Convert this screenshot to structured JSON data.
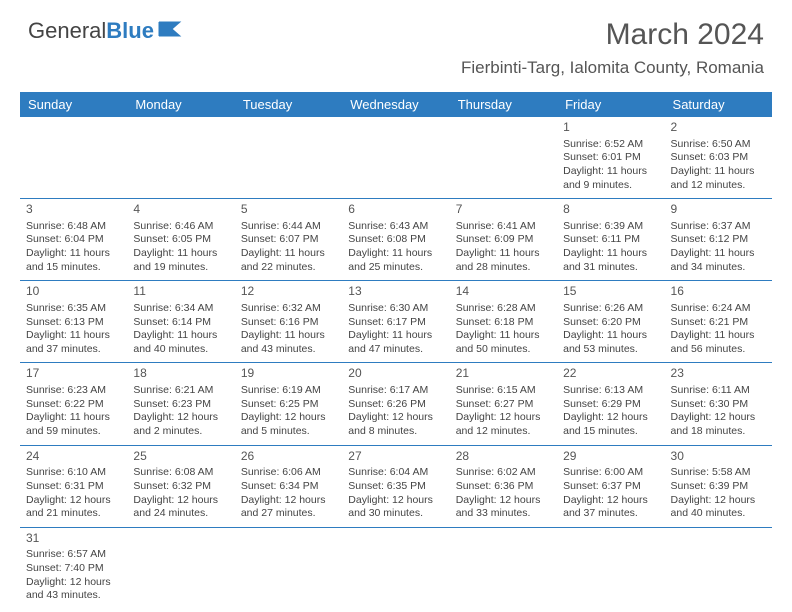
{
  "logo": {
    "general": "General",
    "blue": "Blue"
  },
  "header": {
    "title": "March 2024",
    "location": "Fierbinti-Targ, Ialomita County, Romania"
  },
  "colors": {
    "header_bg": "#2e7cc0",
    "header_text": "#ffffff",
    "border": "#2e7cc0",
    "text": "#444444"
  },
  "day_headers": [
    "Sunday",
    "Monday",
    "Tuesday",
    "Wednesday",
    "Thursday",
    "Friday",
    "Saturday"
  ],
  "weeks": [
    [
      null,
      null,
      null,
      null,
      null,
      {
        "n": "1",
        "sr": "Sunrise: 6:52 AM",
        "ss": "Sunset: 6:01 PM",
        "d1": "Daylight: 11 hours",
        "d2": "and 9 minutes."
      },
      {
        "n": "2",
        "sr": "Sunrise: 6:50 AM",
        "ss": "Sunset: 6:03 PM",
        "d1": "Daylight: 11 hours",
        "d2": "and 12 minutes."
      }
    ],
    [
      {
        "n": "3",
        "sr": "Sunrise: 6:48 AM",
        "ss": "Sunset: 6:04 PM",
        "d1": "Daylight: 11 hours",
        "d2": "and 15 minutes."
      },
      {
        "n": "4",
        "sr": "Sunrise: 6:46 AM",
        "ss": "Sunset: 6:05 PM",
        "d1": "Daylight: 11 hours",
        "d2": "and 19 minutes."
      },
      {
        "n": "5",
        "sr": "Sunrise: 6:44 AM",
        "ss": "Sunset: 6:07 PM",
        "d1": "Daylight: 11 hours",
        "d2": "and 22 minutes."
      },
      {
        "n": "6",
        "sr": "Sunrise: 6:43 AM",
        "ss": "Sunset: 6:08 PM",
        "d1": "Daylight: 11 hours",
        "d2": "and 25 minutes."
      },
      {
        "n": "7",
        "sr": "Sunrise: 6:41 AM",
        "ss": "Sunset: 6:09 PM",
        "d1": "Daylight: 11 hours",
        "d2": "and 28 minutes."
      },
      {
        "n": "8",
        "sr": "Sunrise: 6:39 AM",
        "ss": "Sunset: 6:11 PM",
        "d1": "Daylight: 11 hours",
        "d2": "and 31 minutes."
      },
      {
        "n": "9",
        "sr": "Sunrise: 6:37 AM",
        "ss": "Sunset: 6:12 PM",
        "d1": "Daylight: 11 hours",
        "d2": "and 34 minutes."
      }
    ],
    [
      {
        "n": "10",
        "sr": "Sunrise: 6:35 AM",
        "ss": "Sunset: 6:13 PM",
        "d1": "Daylight: 11 hours",
        "d2": "and 37 minutes."
      },
      {
        "n": "11",
        "sr": "Sunrise: 6:34 AM",
        "ss": "Sunset: 6:14 PM",
        "d1": "Daylight: 11 hours",
        "d2": "and 40 minutes."
      },
      {
        "n": "12",
        "sr": "Sunrise: 6:32 AM",
        "ss": "Sunset: 6:16 PM",
        "d1": "Daylight: 11 hours",
        "d2": "and 43 minutes."
      },
      {
        "n": "13",
        "sr": "Sunrise: 6:30 AM",
        "ss": "Sunset: 6:17 PM",
        "d1": "Daylight: 11 hours",
        "d2": "and 47 minutes."
      },
      {
        "n": "14",
        "sr": "Sunrise: 6:28 AM",
        "ss": "Sunset: 6:18 PM",
        "d1": "Daylight: 11 hours",
        "d2": "and 50 minutes."
      },
      {
        "n": "15",
        "sr": "Sunrise: 6:26 AM",
        "ss": "Sunset: 6:20 PM",
        "d1": "Daylight: 11 hours",
        "d2": "and 53 minutes."
      },
      {
        "n": "16",
        "sr": "Sunrise: 6:24 AM",
        "ss": "Sunset: 6:21 PM",
        "d1": "Daylight: 11 hours",
        "d2": "and 56 minutes."
      }
    ],
    [
      {
        "n": "17",
        "sr": "Sunrise: 6:23 AM",
        "ss": "Sunset: 6:22 PM",
        "d1": "Daylight: 11 hours",
        "d2": "and 59 minutes."
      },
      {
        "n": "18",
        "sr": "Sunrise: 6:21 AM",
        "ss": "Sunset: 6:23 PM",
        "d1": "Daylight: 12 hours",
        "d2": "and 2 minutes."
      },
      {
        "n": "19",
        "sr": "Sunrise: 6:19 AM",
        "ss": "Sunset: 6:25 PM",
        "d1": "Daylight: 12 hours",
        "d2": "and 5 minutes."
      },
      {
        "n": "20",
        "sr": "Sunrise: 6:17 AM",
        "ss": "Sunset: 6:26 PM",
        "d1": "Daylight: 12 hours",
        "d2": "and 8 minutes."
      },
      {
        "n": "21",
        "sr": "Sunrise: 6:15 AM",
        "ss": "Sunset: 6:27 PM",
        "d1": "Daylight: 12 hours",
        "d2": "and 12 minutes."
      },
      {
        "n": "22",
        "sr": "Sunrise: 6:13 AM",
        "ss": "Sunset: 6:29 PM",
        "d1": "Daylight: 12 hours",
        "d2": "and 15 minutes."
      },
      {
        "n": "23",
        "sr": "Sunrise: 6:11 AM",
        "ss": "Sunset: 6:30 PM",
        "d1": "Daylight: 12 hours",
        "d2": "and 18 minutes."
      }
    ],
    [
      {
        "n": "24",
        "sr": "Sunrise: 6:10 AM",
        "ss": "Sunset: 6:31 PM",
        "d1": "Daylight: 12 hours",
        "d2": "and 21 minutes."
      },
      {
        "n": "25",
        "sr": "Sunrise: 6:08 AM",
        "ss": "Sunset: 6:32 PM",
        "d1": "Daylight: 12 hours",
        "d2": "and 24 minutes."
      },
      {
        "n": "26",
        "sr": "Sunrise: 6:06 AM",
        "ss": "Sunset: 6:34 PM",
        "d1": "Daylight: 12 hours",
        "d2": "and 27 minutes."
      },
      {
        "n": "27",
        "sr": "Sunrise: 6:04 AM",
        "ss": "Sunset: 6:35 PM",
        "d1": "Daylight: 12 hours",
        "d2": "and 30 minutes."
      },
      {
        "n": "28",
        "sr": "Sunrise: 6:02 AM",
        "ss": "Sunset: 6:36 PM",
        "d1": "Daylight: 12 hours",
        "d2": "and 33 minutes."
      },
      {
        "n": "29",
        "sr": "Sunrise: 6:00 AM",
        "ss": "Sunset: 6:37 PM",
        "d1": "Daylight: 12 hours",
        "d2": "and 37 minutes."
      },
      {
        "n": "30",
        "sr": "Sunrise: 5:58 AM",
        "ss": "Sunset: 6:39 PM",
        "d1": "Daylight: 12 hours",
        "d2": "and 40 minutes."
      }
    ],
    [
      {
        "n": "31",
        "sr": "Sunrise: 6:57 AM",
        "ss": "Sunset: 7:40 PM",
        "d1": "Daylight: 12 hours",
        "d2": "and 43 minutes."
      },
      null,
      null,
      null,
      null,
      null,
      null
    ]
  ]
}
